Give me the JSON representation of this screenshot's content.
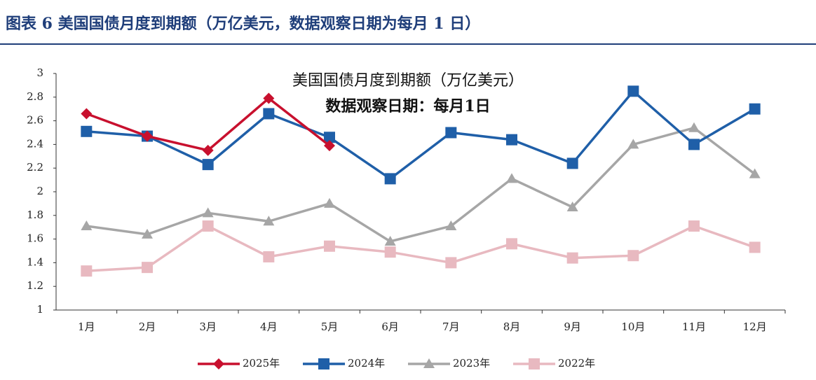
{
  "caption": "图表 6   美国国债月度到期额（万亿美元，数据观察日期为每月 1 日）",
  "chart_data": {
    "type": "line",
    "title": "美国国债月度到期额（万亿美元）",
    "subtitle": "数据观察日期：每月1日",
    "categories": [
      "1月",
      "2月",
      "3月",
      "4月",
      "5月",
      "6月",
      "7月",
      "8月",
      "9月",
      "10月",
      "11月",
      "12月"
    ],
    "ylim": [
      1,
      3
    ],
    "yticks": [
      1,
      1.2,
      1.4,
      1.6,
      1.8,
      2,
      2.2,
      2.4,
      2.6,
      2.8,
      3
    ],
    "series": [
      {
        "name": "2025年",
        "color": "#c8102e",
        "marker": "diamond",
        "values": [
          2.66,
          2.47,
          2.35,
          2.79,
          2.39,
          null,
          null,
          null,
          null,
          null,
          null,
          null
        ]
      },
      {
        "name": "2024年",
        "color": "#1f5fa8",
        "marker": "square",
        "values": [
          2.51,
          2.47,
          2.23,
          2.66,
          2.46,
          2.11,
          2.5,
          2.44,
          2.24,
          2.85,
          2.4,
          2.7
        ]
      },
      {
        "name": "2023年",
        "color": "#a6a6a6",
        "marker": "triangle",
        "values": [
          1.71,
          1.64,
          1.82,
          1.75,
          1.9,
          1.58,
          1.71,
          2.11,
          1.87,
          2.4,
          2.54,
          2.15
        ]
      },
      {
        "name": "2022年",
        "color": "#e8b9c0",
        "marker": "square",
        "values": [
          1.33,
          1.36,
          1.71,
          1.45,
          1.54,
          1.49,
          1.4,
          1.56,
          1.44,
          1.46,
          1.71,
          1.53
        ]
      }
    ]
  }
}
